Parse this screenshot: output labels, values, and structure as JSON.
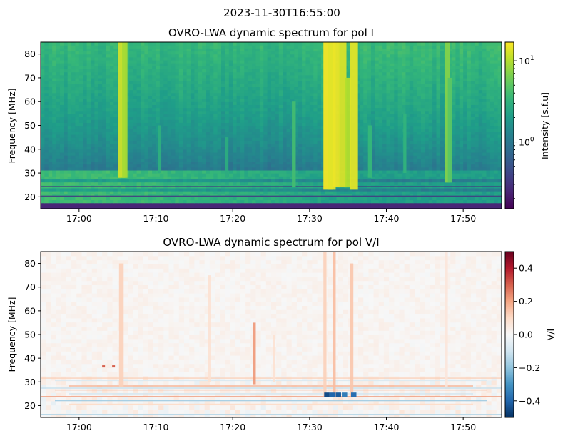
{
  "figure": {
    "suptitle": "2023-11-30T16:55:00"
  },
  "chart_data": [
    {
      "type": "heatmap",
      "title": "OVRO-LWA dynamic spectrum for pol I",
      "xlabel": "",
      "ylabel": "Frequency [MHz]",
      "colorbar_label": "Intensity [s.f.u]",
      "colormap": "viridis",
      "color_scale": "log",
      "clim": [
        0.15,
        17
      ],
      "colorbar_ticks": [
        {
          "value": 1,
          "base": "10",
          "exp": "0"
        },
        {
          "value": 10,
          "base": "10",
          "exp": "1"
        }
      ],
      "x_range_minutes": [
        "16:55",
        "17:55"
      ],
      "xticks": [
        "17:00",
        "17:10",
        "17:20",
        "17:30",
        "17:40",
        "17:50"
      ],
      "xtick_minutes": [
        5,
        15,
        25,
        35,
        45,
        55
      ],
      "ylim": [
        15,
        85
      ],
      "yticks": [
        20,
        30,
        40,
        50,
        60,
        70,
        80
      ],
      "features": {
        "background_low_freq_band": [
          15,
          31
        ],
        "bright_bursts_time": [
          "17:32",
          "17:33",
          "17:34",
          "17:35"
        ],
        "isolated_burst_times": [
          "17:05",
          "17:47"
        ]
      }
    },
    {
      "type": "heatmap",
      "title": "OVRO-LWA dynamic spectrum for pol V/I",
      "xlabel": "",
      "ylabel": "Frequency [MHz]",
      "colorbar_label": "V/I",
      "colormap": "RdBu_r",
      "color_scale": "linear",
      "clim": [
        -0.5,
        0.5
      ],
      "colorbar_ticks": [
        {
          "value": 0.4,
          "label": "0.4"
        },
        {
          "value": 0.2,
          "label": "0.2"
        },
        {
          "value": 0.0,
          "label": "0.0"
        },
        {
          "value": -0.2,
          "label": "−0.2"
        },
        {
          "value": -0.4,
          "label": "−0.4"
        }
      ],
      "x_range_minutes": [
        "16:55",
        "17:55"
      ],
      "xticks": [
        "17:00",
        "17:10",
        "17:20",
        "17:30",
        "17:40",
        "17:50"
      ],
      "xtick_minutes": [
        5,
        15,
        25,
        35,
        45,
        55
      ],
      "ylim": [
        15,
        85
      ],
      "yticks": [
        20,
        30,
        40,
        50,
        60,
        70,
        80
      ]
    }
  ]
}
